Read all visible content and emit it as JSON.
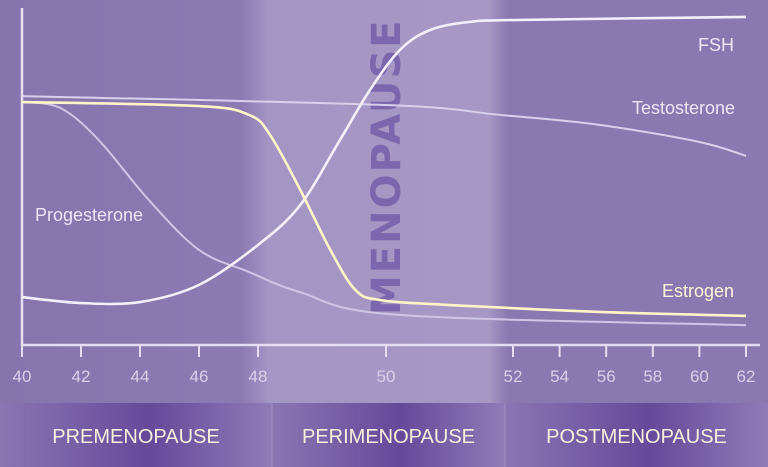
{
  "chart_data": {
    "type": "line",
    "title": "",
    "xlabel": "",
    "ylabel": "",
    "xlim": [
      40,
      62
    ],
    "ylim": [
      0,
      100
    ],
    "x_ticks": [
      "40",
      "42",
      "44",
      "46",
      "48",
      "50",
      "52",
      "54",
      "56",
      "58",
      "60",
      "62"
    ],
    "grid": false,
    "annotation": "MENOPAUSE",
    "phases": [
      {
        "label": "PREMENOPAUSE",
        "range": [
          40,
          48
        ]
      },
      {
        "label": "PERIMENOPAUSE",
        "range": [
          48,
          52
        ]
      },
      {
        "label": "POSTMENOPAUSE",
        "range": [
          52,
          62
        ]
      }
    ],
    "series": [
      {
        "name": "FSH",
        "color": "#f4f0fa",
        "x": [
          40,
          42,
          44,
          46,
          48,
          48.66,
          49.28,
          49.75,
          50.22,
          50.69,
          51.32,
          52.3,
          62
        ],
        "y": [
          13,
          11.2,
          11.5,
          16.7,
          28.8,
          40.9,
          60.6,
          75.8,
          87.9,
          93.9,
          96.4,
          97,
          97.9
        ]
      },
      {
        "name": "Testosterone",
        "color": "#d9d0ec",
        "x": [
          40,
          50,
          51.8,
          55.7,
          60,
          62
        ],
        "y": [
          73.9,
          71.2,
          68.2,
          65.2,
          60,
          55.8
        ]
      },
      {
        "name": "Estrogen",
        "color": "#fff6c8",
        "x": [
          40,
          46,
          47.7,
          48.19,
          48.66,
          49.13,
          49.52,
          49.91,
          51,
          55.7,
          62
        ],
        "y": [
          72.1,
          70.9,
          68.2,
          62.1,
          45.5,
          27.3,
          15.2,
          12.1,
          10.6,
          8.5,
          7.3
        ]
      },
      {
        "name": "Progesterone",
        "color": "#cfc5e6",
        "x": [
          40,
          41.3,
          42.6,
          44.3,
          46,
          47.7,
          48.66,
          50.2,
          62
        ],
        "y": [
          72.1,
          70.3,
          60.6,
          42.4,
          27.3,
          20.6,
          14.5,
          7.6,
          4.5
        ]
      }
    ]
  }
}
